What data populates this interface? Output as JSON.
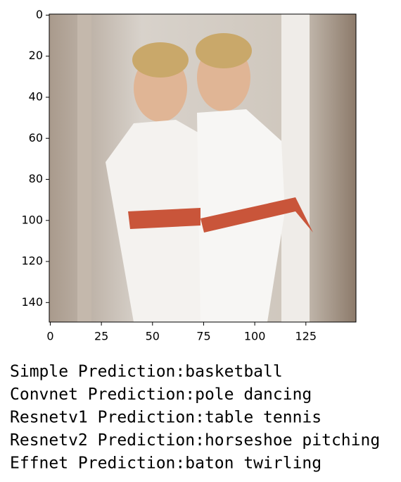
{
  "chart_data": {
    "type": "image",
    "xlim": [
      -0.5,
      149.5
    ],
    "xticks": [
      0,
      25,
      50,
      75,
      100,
      125
    ],
    "ylim": [
      149.5,
      -0.5
    ],
    "yticks": [
      0,
      20,
      40,
      60,
      80,
      100,
      120,
      140
    ]
  },
  "output_lines": [
    "Simple Prediction:basketball",
    "Convnet Prediction:pole dancing",
    "Resnetv1 Prediction:table tennis",
    "Resnetv2 Prediction:horseshoe pitching",
    "Effnet Prediction:baton twirling"
  ]
}
